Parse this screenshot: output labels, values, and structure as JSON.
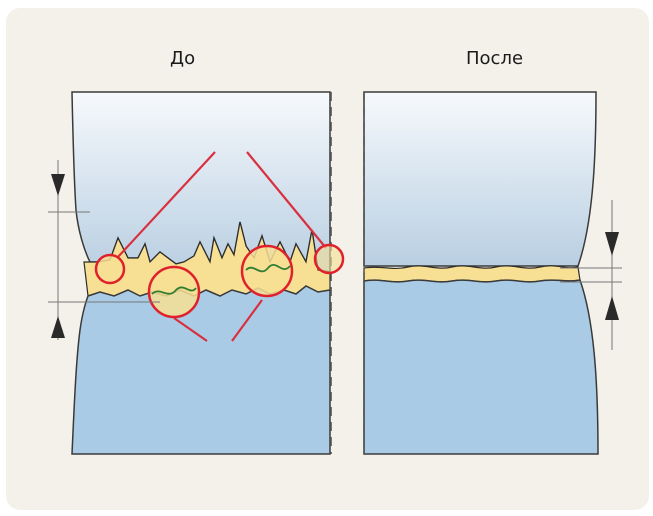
{
  "labels": {
    "before": "До",
    "after": "После"
  },
  "colors": {
    "card_background": "#f3f1ea",
    "solid_blue": "#a9cbe6",
    "gradient_top": "#f6f9fc",
    "gradient_bottom": "#b9cfe2",
    "interface_layer": "#f7df93",
    "highlight_circle": "#e0212c",
    "pointer_line": "#d9303f",
    "dimension_arrow": "#2a2a2a"
  },
  "icons": {
    "dimension_arrow_up": "triangle-up-icon",
    "dimension_arrow_down": "triangle-down-icon",
    "contact_highlight": "red-circle-icon"
  }
}
